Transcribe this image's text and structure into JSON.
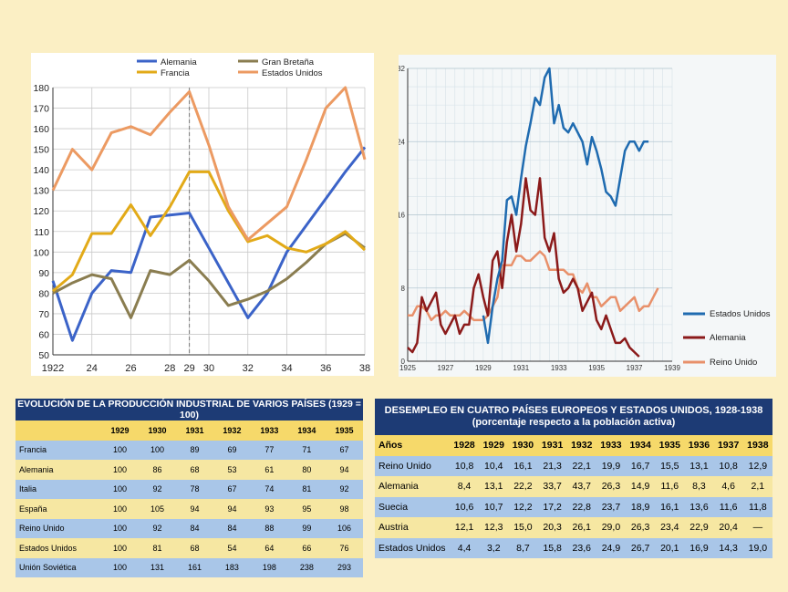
{
  "chart_data": [
    {
      "type": "line",
      "xlim": [
        1922,
        1938
      ],
      "ylim": [
        50,
        180
      ],
      "x_ticks": [
        "1922",
        "24",
        "26",
        "28",
        "29",
        "30",
        "32",
        "34",
        "36",
        "38"
      ],
      "y_ticks": [
        "50",
        "60",
        "70",
        "80",
        "90",
        "100",
        "110",
        "120",
        "130",
        "140",
        "150",
        "160",
        "170",
        "180"
      ],
      "grid": true,
      "legend_position": "top",
      "annotations": [
        "reference line at 1929"
      ],
      "series": [
        {
          "name": "Alemania",
          "color": "#3b63c8",
          "x": [
            1922,
            1923,
            1924,
            1925,
            1926,
            1927,
            1928,
            1929,
            1930,
            1931,
            1932,
            1933,
            1934,
            1935,
            1936,
            1937,
            1938
          ],
          "values": [
            86,
            57,
            80,
            91,
            90,
            117,
            118,
            119,
            102,
            85,
            68,
            80,
            100,
            113,
            126,
            139,
            151
          ]
        },
        {
          "name": "Gran Bretaña",
          "color": "#8a7d50",
          "x": [
            1922,
            1923,
            1924,
            1925,
            1926,
            1927,
            1928,
            1929,
            1930,
            1931,
            1932,
            1933,
            1934,
            1935,
            1936,
            1937,
            1938
          ],
          "values": [
            80,
            85,
            89,
            87,
            68,
            91,
            89,
            96,
            86,
            74,
            77,
            81,
            87,
            95,
            104,
            109,
            102
          ]
        },
        {
          "name": "Francia",
          "color": "#e2aa18",
          "x": [
            1922,
            1923,
            1924,
            1925,
            1926,
            1927,
            1928,
            1929,
            1930,
            1931,
            1932,
            1933,
            1934,
            1935,
            1936,
            1937,
            1938
          ],
          "values": [
            81,
            89,
            109,
            109,
            123,
            108,
            122,
            139,
            139,
            120,
            105,
            108,
            102,
            100,
            104,
            110,
            101
          ]
        },
        {
          "name": "Estados Unidos",
          "color": "#ec9a62",
          "x": [
            1922,
            1923,
            1924,
            1925,
            1926,
            1927,
            1928,
            1929,
            1930,
            1931,
            1932,
            1933,
            1934,
            1935,
            1936,
            1937,
            1938
          ],
          "values": [
            130,
            150,
            140,
            158,
            161,
            157,
            168,
            178,
            152,
            122,
            106,
            114,
            122,
            145,
            170,
            180,
            145
          ]
        }
      ]
    },
    {
      "type": "line",
      "xlim": [
        1925,
        1939
      ],
      "ylim": [
        0,
        32
      ],
      "x_ticks": [
        "1925",
        "1927",
        "1929",
        "1931",
        "1933",
        "1935",
        "1937",
        "1939"
      ],
      "y_ticks": [
        "0",
        "8",
        "16",
        "24",
        "32"
      ],
      "grid": true,
      "legend_position": "bottom-right",
      "series": [
        {
          "name": "Estados Unidos",
          "color": "#1f6bb0",
          "x": [
            1929,
            1929.25,
            1929.5,
            1929.75,
            1930,
            1930.25,
            1930.5,
            1930.75,
            1931,
            1931.25,
            1931.5,
            1931.75,
            1932,
            1932.25,
            1932.5,
            1932.75,
            1933,
            1933.25,
            1933.5,
            1933.75,
            1934,
            1934.25,
            1934.5,
            1934.75,
            1935,
            1935.25,
            1935.5,
            1935.75,
            1936,
            1936.25,
            1936.5,
            1936.75,
            1937,
            1937.25,
            1937.5,
            1937.75,
            1938,
            1938.25,
            1938.5,
            1938.75
          ],
          "values": [
            5,
            2,
            6,
            9,
            11,
            17.6,
            18,
            16,
            20,
            23.5,
            26,
            28.8,
            28,
            31,
            32,
            26,
            28,
            25.5,
            25,
            26,
            25,
            24,
            21.5,
            24.5,
            23,
            21,
            18.5,
            18,
            17,
            20,
            23,
            24,
            24,
            23,
            24,
            24,
            null,
            null,
            null,
            null
          ]
        },
        {
          "name": "Alemania",
          "color": "#8b1a1a",
          "x": [
            1925,
            1925.25,
            1925.5,
            1925.75,
            1926,
            1926.25,
            1926.5,
            1926.75,
            1927,
            1927.25,
            1927.5,
            1927.75,
            1928,
            1928.25,
            1928.5,
            1928.75,
            1929,
            1929.25,
            1929.5,
            1929.75,
            1930,
            1930.25,
            1930.5,
            1930.75,
            1931,
            1931.25,
            1931.5,
            1931.75,
            1932,
            1932.25,
            1932.5,
            1932.75,
            1933,
            1933.25,
            1933.5,
            1933.75,
            1934,
            1934.25,
            1934.5,
            1934.75,
            1935,
            1935.25,
            1935.5,
            1935.75,
            1936,
            1936.25,
            1936.5,
            1936.75,
            1937,
            1937.25,
            1937.5,
            1937.75,
            1938,
            1938.25,
            1938.5,
            1938.75
          ],
          "values": [
            1.5,
            1,
            2,
            7,
            5.5,
            6.5,
            7.5,
            4,
            3,
            4,
            5,
            3,
            4,
            4,
            8,
            9.5,
            7,
            5,
            11,
            12,
            8,
            13,
            16,
            12,
            15,
            20,
            16.5,
            16,
            20,
            13.5,
            12,
            14,
            9,
            7.5,
            8,
            9,
            8,
            5.5,
            6.5,
            7.5,
            4.5,
            3.5,
            5,
            3.5,
            2,
            2,
            2.5,
            1.5,
            1,
            0.5,
            null,
            null,
            null,
            null,
            null,
            null
          ]
        },
        {
          "name": "Reino Unido",
          "color": "#e8906a",
          "x": [
            1925,
            1925.25,
            1925.5,
            1925.75,
            1926,
            1926.25,
            1926.5,
            1926.75,
            1927,
            1927.25,
            1927.5,
            1927.75,
            1928,
            1928.25,
            1928.5,
            1928.75,
            1929,
            1929.25,
            1929.5,
            1929.75,
            1930,
            1930.25,
            1930.5,
            1930.75,
            1931,
            1931.25,
            1931.5,
            1931.75,
            1932,
            1932.25,
            1932.5,
            1932.75,
            1933,
            1933.25,
            1933.5,
            1933.75,
            1934,
            1934.25,
            1934.5,
            1934.75,
            1935,
            1935.25,
            1935.5,
            1935.75,
            1936,
            1936.25,
            1936.5,
            1936.75,
            1937,
            1937.25,
            1937.5,
            1937.75,
            1938,
            1938.25,
            1938.5,
            1938.75
          ],
          "values": [
            5,
            5,
            6,
            6,
            5.5,
            4.5,
            5,
            5,
            5.5,
            5,
            5,
            5,
            5.5,
            5,
            4.5,
            4.5,
            4.5,
            5,
            6,
            7,
            10.5,
            10.5,
            10.5,
            11.5,
            11.5,
            11,
            11,
            11.5,
            12,
            11.5,
            10,
            10,
            10,
            10,
            9.5,
            9.5,
            8,
            7.5,
            8.5,
            7,
            7,
            6,
            6.5,
            7,
            7,
            5.5,
            6,
            6.5,
            7,
            5.5,
            6,
            6,
            7,
            8,
            null,
            null
          ]
        }
      ]
    },
    {
      "type": "table",
      "title": "EVOLUCIÓN DE LA PRODUCCIÓN INDUSTRIAL DE VARIOS PAÍSES (1929 = 100)",
      "columns": [
        "",
        "1929",
        "1930",
        "1931",
        "1932",
        "1933",
        "1934",
        "1935"
      ],
      "rows": [
        [
          "Francia",
          "100",
          "100",
          "89",
          "69",
          "77",
          "71",
          "67"
        ],
        [
          "Alemania",
          "100",
          "86",
          "68",
          "53",
          "61",
          "80",
          "94"
        ],
        [
          "Italia",
          "100",
          "92",
          "78",
          "67",
          "74",
          "81",
          "92"
        ],
        [
          "España",
          "100",
          "105",
          "94",
          "94",
          "93",
          "95",
          "98"
        ],
        [
          "Reino Unido",
          "100",
          "92",
          "84",
          "84",
          "88",
          "99",
          "106"
        ],
        [
          "Estados Unidos",
          "100",
          "81",
          "68",
          "54",
          "64",
          "66",
          "76"
        ],
        [
          "Unión Soviética",
          "100",
          "131",
          "161",
          "183",
          "198",
          "238",
          "293"
        ]
      ]
    },
    {
      "type": "table",
      "title": "DESEMPLEO EN CUATRO PAÍSES EUROPEOS Y ESTADOS UNIDOS, 1928-1938",
      "subtitle": "(porcentaje respecto a la población activa)",
      "columns": [
        "Años",
        "1928",
        "1929",
        "1930",
        "1931",
        "1932",
        "1933",
        "1934",
        "1935",
        "1936",
        "1937",
        "1938"
      ],
      "rows": [
        [
          "Reino Unido",
          "10,8",
          "10,4",
          "16,1",
          "21,3",
          "22,1",
          "19,9",
          "16,7",
          "15,5",
          "13,1",
          "10,8",
          "12,9"
        ],
        [
          "Alemania",
          "8,4",
          "13,1",
          "22,2",
          "33,7",
          "43,7",
          "26,3",
          "14,9",
          "11,6",
          "8,3",
          "4,6",
          "2,1"
        ],
        [
          "Suecia",
          "10,6",
          "10,7",
          "12,2",
          "17,2",
          "22,8",
          "23,7",
          "18,9",
          "16,1",
          "13,6",
          "11,6",
          "11,8"
        ],
        [
          "Austria",
          "12,1",
          "12,3",
          "15,0",
          "20,3",
          "26,1",
          "29,0",
          "26,3",
          "23,4",
          "22,9",
          "20,4",
          "—"
        ],
        [
          "Estados Unidos",
          "4,4",
          "3,2",
          "8,7",
          "15,8",
          "23,6",
          "24,9",
          "26,7",
          "20,1",
          "16,9",
          "14,3",
          "19,0"
        ]
      ]
    }
  ]
}
